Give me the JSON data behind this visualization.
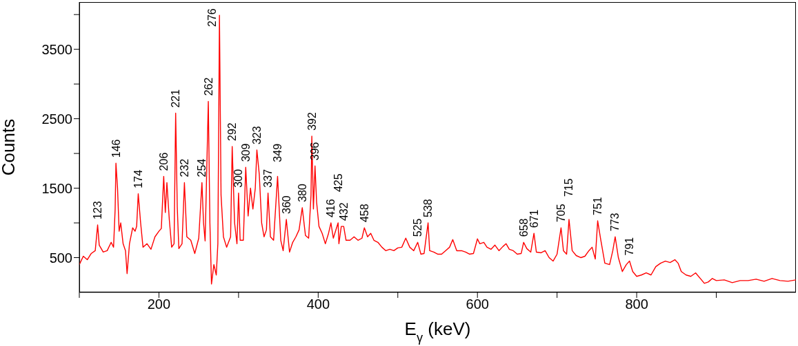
{
  "chart_data": {
    "type": "line",
    "xlabel": "E$_{γ}$  (keV)",
    "ylabel": "Counts",
    "xlim": [
      100,
      1000
    ],
    "ylim": [
      0,
      4180
    ],
    "xticks": [
      {
        "value": 100,
        "label": null
      },
      200,
      {
        "value": 300,
        "label": null
      },
      400,
      {
        "value": 500,
        "label": null
      },
      600,
      {
        "value": 700,
        "label": null
      },
      800,
      {
        "value": 900,
        "label": null
      }
    ],
    "yticks": [
      500,
      {
        "value": 1000,
        "label": null
      },
      1500,
      {
        "value": 2000,
        "label": null
      },
      2500,
      {
        "value": 3000,
        "label": null
      },
      3500,
      {
        "value": 4000,
        "label": null
      }
    ],
    "marker": "none",
    "x": [
      100,
      105,
      110,
      115,
      120,
      123,
      125,
      130,
      135,
      140,
      143,
      145,
      146,
      148,
      150,
      152,
      155,
      158,
      160,
      163,
      167,
      170,
      172,
      174,
      177,
      180,
      185,
      190,
      195,
      200,
      203,
      206,
      208,
      210,
      213,
      216,
      219,
      221,
      223,
      225,
      229,
      232,
      235,
      240,
      245,
      250,
      254,
      256,
      258,
      262,
      264,
      266,
      269,
      272,
      274,
      276,
      278,
      281,
      285,
      290,
      292,
      295,
      298,
      300,
      302,
      306,
      309,
      312,
      315,
      318,
      321,
      323,
      326,
      329,
      332,
      335,
      337,
      340,
      344,
      349,
      353,
      356,
      360,
      364,
      368,
      372,
      376,
      380,
      384,
      388,
      391,
      392,
      394,
      396,
      398,
      401,
      405,
      409,
      413,
      416,
      419,
      425,
      426,
      429,
      432,
      435,
      440,
      445,
      450,
      455,
      458,
      462,
      466,
      470,
      475,
      480,
      485,
      490,
      495,
      500,
      505,
      510,
      515,
      520,
      525,
      529,
      533,
      538,
      540,
      545,
      550,
      555,
      560,
      565,
      569,
      574,
      580,
      585,
      590,
      595,
      600,
      603,
      608,
      612,
      617,
      622,
      627,
      632,
      636,
      640,
      645,
      650,
      655,
      658,
      662,
      667,
      671,
      674,
      680,
      685,
      690,
      695,
      700,
      705,
      708,
      712,
      715,
      719,
      724,
      730,
      735,
      740,
      744,
      748,
      751,
      755,
      760,
      766,
      770,
      773,
      777,
      782,
      787,
      791,
      795,
      800,
      806,
      812,
      818,
      824,
      830,
      836,
      842,
      848,
      852,
      856,
      862,
      868,
      874,
      885,
      890,
      895,
      900,
      910,
      920,
      930,
      940,
      950,
      960,
      970,
      980,
      990,
      1000
    ],
    "series": [
      {
        "color": "#ff0000",
        "values": [
          400,
          520,
          470,
          560,
          600,
          970,
          680,
          580,
          600,
          720,
          650,
          1200,
          1860,
          1500,
          880,
          1000,
          700,
          600,
          270,
          700,
          930,
          880,
          950,
          1420,
          1000,
          650,
          700,
          620,
          800,
          880,
          920,
          1670,
          1150,
          1580,
          1050,
          650,
          700,
          2580,
          1230,
          630,
          700,
          1580,
          800,
          750,
          560,
          780,
          1580,
          1000,
          740,
          2750,
          1000,
          120,
          400,
          250,
          700,
          3990,
          1400,
          800,
          650,
          800,
          2100,
          1000,
          700,
          1430,
          750,
          750,
          1800,
          1100,
          1500,
          1200,
          1500,
          2050,
          1700,
          1000,
          800,
          900,
          1430,
          800,
          750,
          1670,
          750,
          600,
          1050,
          580,
          720,
          800,
          900,
          1220,
          820,
          780,
          1400,
          2250,
          1200,
          1820,
          1300,
          950,
          850,
          700,
          850,
          1000,
          780,
          1000,
          700,
          950,
          950,
          750,
          750,
          800,
          750,
          780,
          930,
          800,
          850,
          750,
          720,
          650,
          600,
          620,
          600,
          640,
          650,
          780,
          650,
          600,
          720,
          550,
          560,
          1000,
          600,
          580,
          550,
          550,
          600,
          650,
          760,
          600,
          600,
          580,
          550,
          560,
          770,
          700,
          720,
          650,
          620,
          680,
          600,
          660,
          700,
          620,
          600,
          550,
          560,
          720,
          630,
          580,
          850,
          580,
          570,
          600,
          500,
          450,
          550,
          930,
          600,
          550,
          1050,
          600,
          530,
          500,
          520,
          600,
          650,
          480,
          1030,
          750,
          420,
          400,
          600,
          800,
          500,
          300,
          400,
          450,
          300,
          230,
          250,
          280,
          250,
          370,
          420,
          450,
          430,
          470,
          420,
          300,
          250,
          230,
          280,
          130,
          150,
          200,
          170,
          180,
          140,
          170,
          170,
          190,
          160,
          200,
          170,
          160,
          180
        ]
      }
    ],
    "annotations": [
      {
        "text": "123",
        "x": 123,
        "y": 970
      },
      {
        "text": "146",
        "x": 146,
        "y": 1860
      },
      {
        "text": "174",
        "x": 174,
        "y": 1420
      },
      {
        "text": "206",
        "x": 206,
        "y": 1670
      },
      {
        "text": "221",
        "x": 221,
        "y": 2580
      },
      {
        "text": "232",
        "x": 232,
        "y": 1580
      },
      {
        "text": "254",
        "x": 254,
        "y": 1580
      },
      {
        "text": "262",
        "x": 262,
        "y": 2750
      },
      {
        "text": "276",
        "x": 276,
        "y": 3990
      },
      {
        "text": "292",
        "x": 292,
        "y": 2100
      },
      {
        "text": "300",
        "x": 300,
        "y": 1430
      },
      {
        "text": "309",
        "x": 309,
        "y": 1800
      },
      {
        "text": "323",
        "x": 323,
        "y": 2050
      },
      {
        "text": "337",
        "x": 337,
        "y": 1430
      },
      {
        "text": "349",
        "x": 349,
        "y": 1670
      },
      {
        "text": "360",
        "x": 360,
        "y": 1050
      },
      {
        "text": "380",
        "x": 380,
        "y": 1220
      },
      {
        "text": "392",
        "x": 392,
        "y": 2250
      },
      {
        "text": "396",
        "x": 396,
        "y": 1820
      },
      {
        "text": "416",
        "x": 416,
        "y": 1000
      },
      {
        "text": "425",
        "x": 425,
        "y": 1000
      },
      {
        "text": "432",
        "x": 432,
        "y": 950
      },
      {
        "text": "458",
        "x": 458,
        "y": 930
      },
      {
        "text": "525",
        "x": 525,
        "y": 720
      },
      {
        "text": "538",
        "x": 538,
        "y": 1000
      },
      {
        "text": "658",
        "x": 658,
        "y": 720
      },
      {
        "text": "671",
        "x": 671,
        "y": 850
      },
      {
        "text": "705",
        "x": 705,
        "y": 930
      },
      {
        "text": "715",
        "x": 715,
        "y": 1050
      },
      {
        "text": "751",
        "x": 751,
        "y": 1030
      },
      {
        "text": "773",
        "x": 773,
        "y": 800
      },
      {
        "text": "791",
        "x": 791,
        "y": 450
      }
    ]
  }
}
